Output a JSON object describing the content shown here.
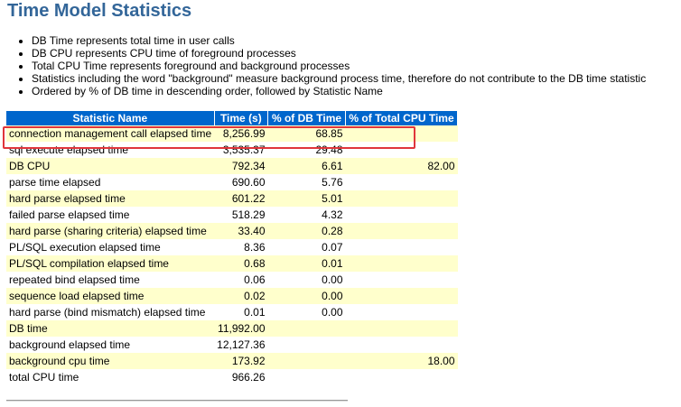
{
  "header": {
    "title": "Time Model Statistics"
  },
  "bullets": [
    "DB Time represents total time in user calls",
    "DB CPU represents CPU time of foreground processes",
    "Total CPU Time represents foreground and background processes",
    "Statistics including the word \"background\" measure background process time, therefore do not contribute to the DB time statistic",
    "Ordered by % of DB time in descending order, followed by Statistic Name"
  ],
  "table": {
    "columns": [
      "Statistic Name",
      "Time (s)",
      "% of DB Time",
      "% of Total CPU Time"
    ],
    "rows": [
      [
        "connection management call elapsed time",
        "8,256.99",
        "68.85",
        null
      ],
      [
        "sql execute elapsed time",
        "3,535.37",
        "29.48",
        null
      ],
      [
        "DB CPU",
        "792.34",
        "6.61",
        "82.00"
      ],
      [
        "parse time elapsed",
        "690.60",
        "5.76",
        null
      ],
      [
        "hard parse elapsed time",
        "601.22",
        "5.01",
        null
      ],
      [
        "failed parse elapsed time",
        "518.29",
        "4.32",
        null
      ],
      [
        "hard parse (sharing criteria) elapsed time",
        "33.40",
        "0.28",
        null
      ],
      [
        "PL/SQL execution elapsed time",
        "8.36",
        "0.07",
        null
      ],
      [
        "PL/SQL compilation elapsed time",
        "0.68",
        "0.01",
        null
      ],
      [
        "repeated bind elapsed time",
        "0.06",
        "0.00",
        null
      ],
      [
        "sequence load elapsed time",
        "0.02",
        "0.00",
        null
      ],
      [
        "hard parse (bind mismatch) elapsed time",
        "0.01",
        "0.00",
        null
      ],
      [
        "DB time",
        "11,992.00",
        null,
        null
      ],
      [
        "background elapsed time",
        "12,127.36",
        null,
        null
      ],
      [
        "background cpu time",
        "173.92",
        null,
        "18.00"
      ],
      [
        "total CPU time",
        "966.26",
        null,
        null
      ]
    ]
  }
}
